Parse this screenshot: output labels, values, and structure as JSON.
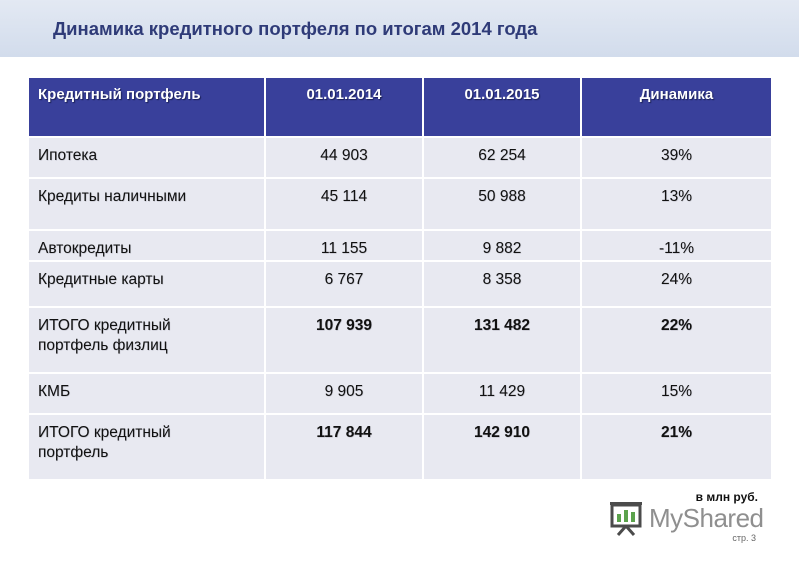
{
  "title": "Динамика кредитного портфеля по итогам 2014 года",
  "table": {
    "headers": [
      "Кредитный портфель",
      "01.01.2014",
      "01.01.2015",
      "Динамика"
    ],
    "rows": [
      {
        "label": "Ипотека",
        "v2014": "44 903",
        "v2015": "62 254",
        "change": "39%"
      },
      {
        "label": "Кредиты наличными",
        "v2014": "45 114",
        "v2015": "50 988",
        "change": "13%"
      },
      {
        "label": "Автокредиты",
        "v2014": "11 155",
        "v2015": "9 882",
        "change": "-11%"
      },
      {
        "label": "Кредитные карты",
        "v2014": "6 767",
        "v2015": "8 358",
        "change": "24%"
      },
      {
        "label": "ИТОГО кредитный портфель физлиц",
        "v2014": "107 939",
        "v2015": "131 482",
        "change": "22%"
      },
      {
        "label": "КМБ",
        "v2014": "9 905",
        "v2015": "11 429",
        "change": "15%"
      },
      {
        "label": "ИТОГО кредитный портфель",
        "v2014": "117 844",
        "v2015": "142 910",
        "change": "21%"
      }
    ]
  },
  "units": "в млн руб.",
  "logo": {
    "text": "MyShared",
    "icon": "presentation-board-icon"
  },
  "page_number": "стр. 3"
}
